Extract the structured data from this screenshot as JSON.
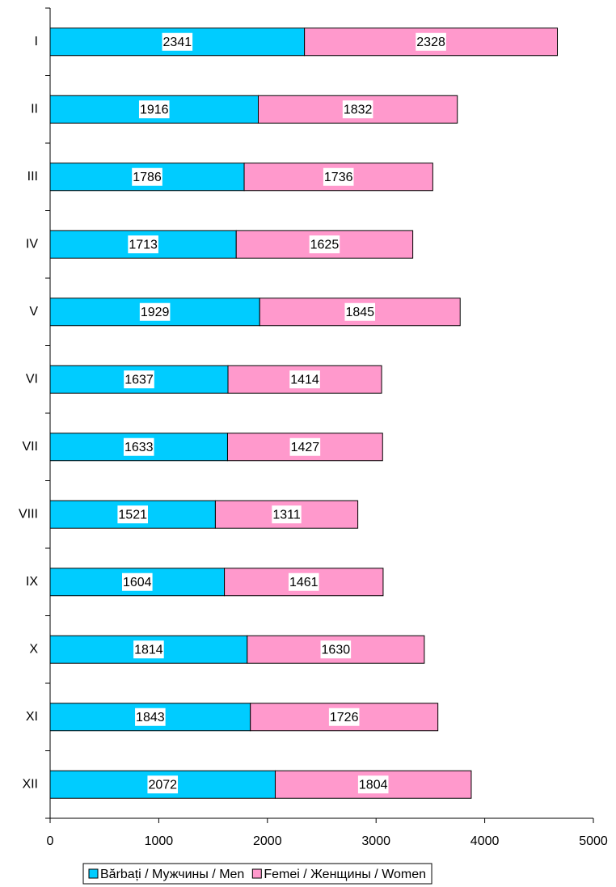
{
  "chart_data": {
    "type": "stacked-barh",
    "categories": [
      "I",
      "II",
      "III",
      "IV",
      "V",
      "VI",
      "VII",
      "VIII",
      "IX",
      "X",
      "XI",
      "XII"
    ],
    "series": [
      {
        "name": "Bărbați / Мужчины / Men",
        "color": "#00ccff",
        "values": [
          2341,
          1916,
          1786,
          1713,
          1929,
          1637,
          1633,
          1521,
          1604,
          1814,
          1843,
          2072
        ]
      },
      {
        "name": "Femei / Женщины / Women",
        "color": "#ff99cc",
        "values": [
          2328,
          1832,
          1736,
          1625,
          1845,
          1414,
          1427,
          1311,
          1461,
          1630,
          1726,
          1804
        ]
      }
    ],
    "xlim": [
      0,
      5000
    ],
    "xticks": [
      0,
      1000,
      2000,
      3000,
      4000,
      5000
    ],
    "legend": "bottom"
  }
}
